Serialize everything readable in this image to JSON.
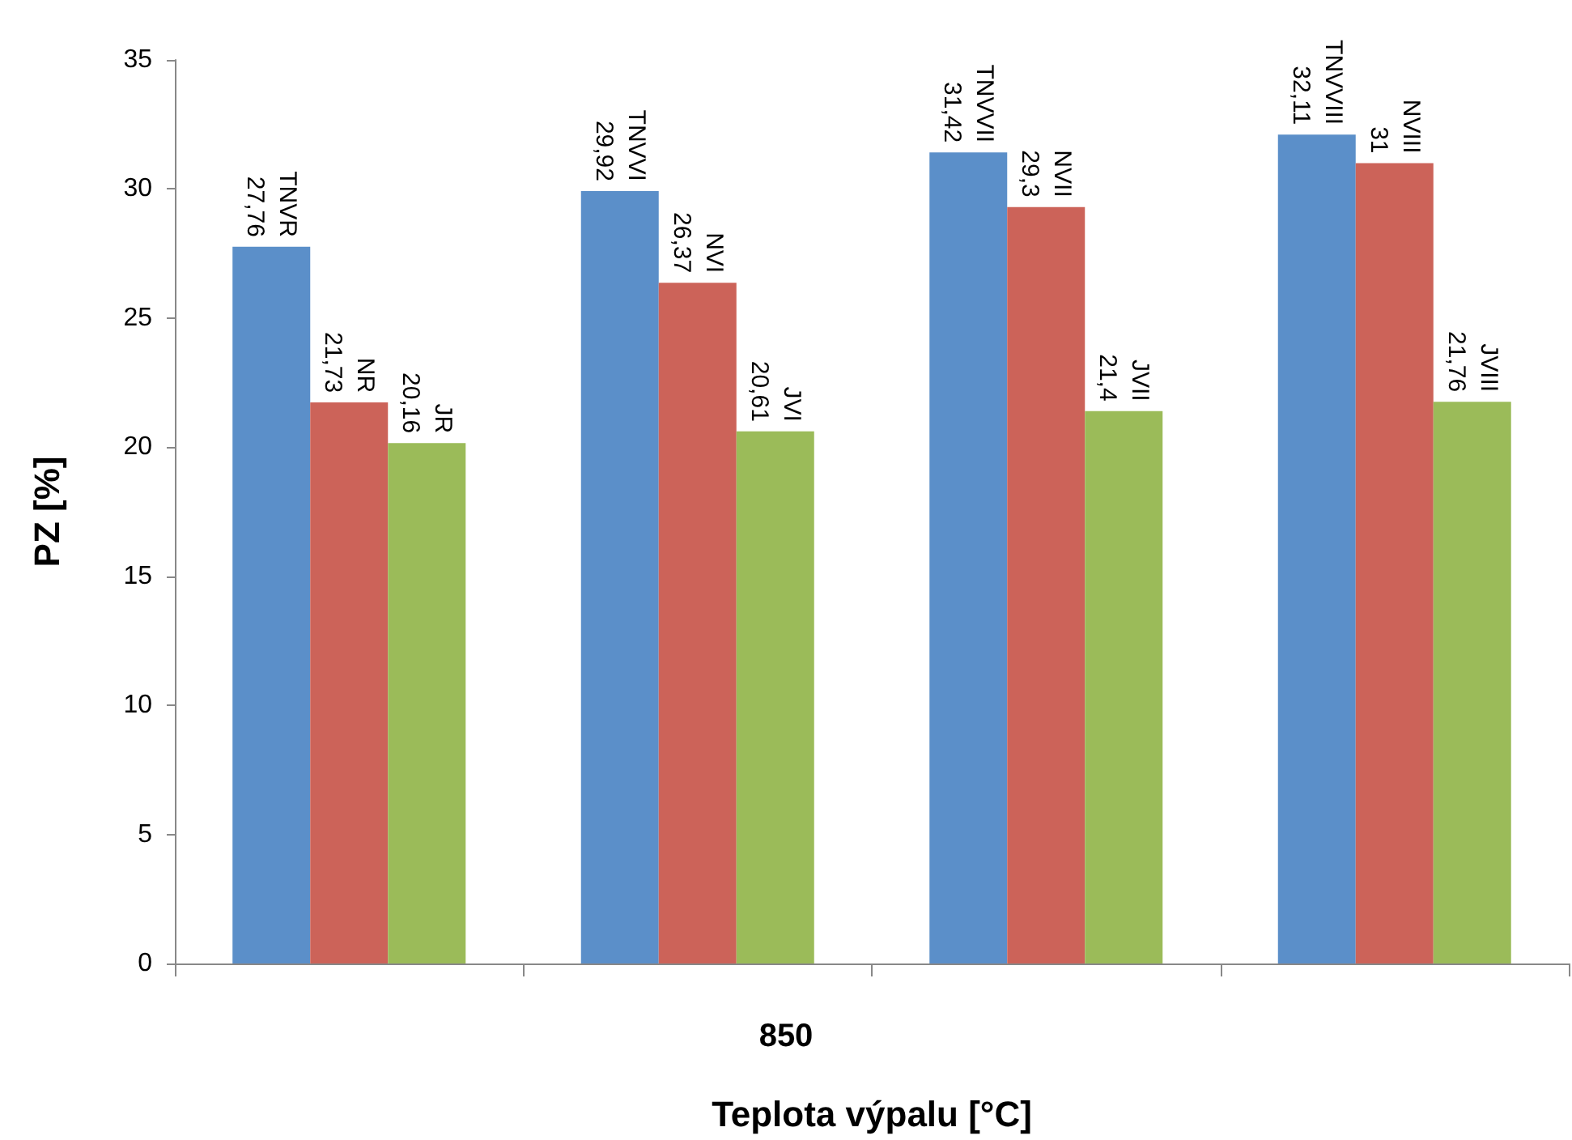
{
  "chart_data": {
    "type": "bar",
    "xlabel": "Teplota výpalu [°C]",
    "ylabel": "PZ [%]",
    "annotations": [
      "850"
    ],
    "categories": [
      null,
      null,
      null,
      null
    ],
    "series": [
      {
        "color": "#5b8fc9",
        "values": [
          27.76,
          29.92,
          31.42,
          32.11
        ],
        "value_labels": [
          "TNVR\n27,76",
          "TNVVI\n29,92",
          "TNVVII\n31,42",
          "TNVVIII\n32,11"
        ]
      },
      {
        "color": "#cc6359",
        "values": [
          21.73,
          26.37,
          29.3,
          31
        ],
        "value_labels": [
          "NR\n21,73",
          "NVI\n26,37",
          "NVII\n29,3",
          "NVIII\n31"
        ]
      },
      {
        "color": "#9bbb59",
        "values": [
          20.16,
          20.61,
          21.4,
          21.76
        ],
        "value_labels": [
          "JR\n20,16",
          "JVI\n20,61",
          "JVII\n21,4",
          "JVIII\n21,76"
        ]
      }
    ],
    "ylim": [
      0,
      35
    ],
    "yticks": [
      0,
      5,
      10,
      15,
      20,
      25,
      30,
      35
    ],
    "grid": false
  }
}
